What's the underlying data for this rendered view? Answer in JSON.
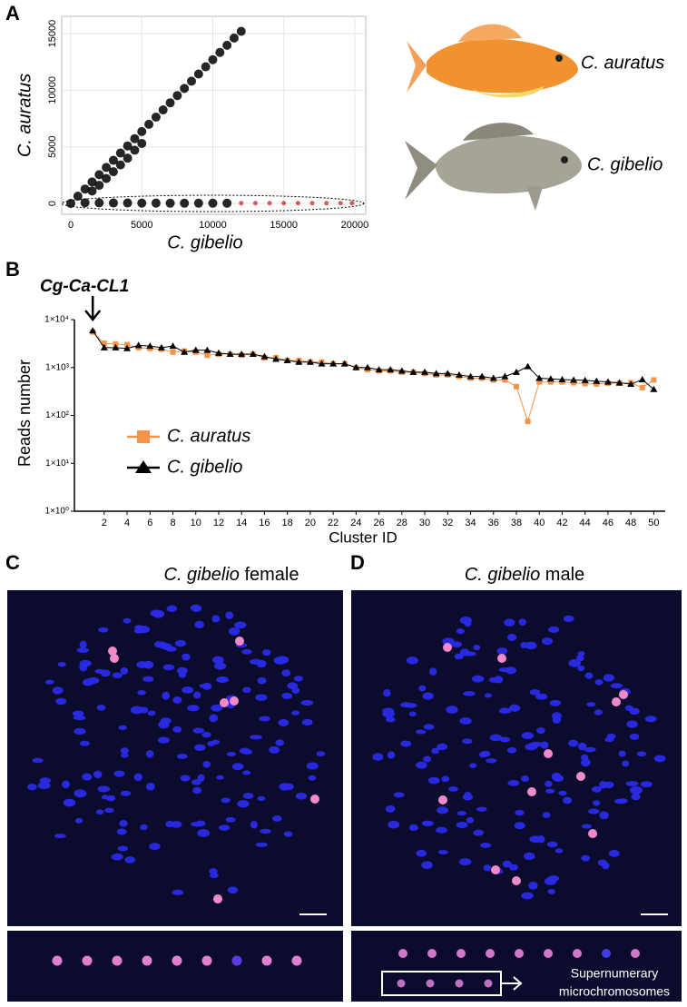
{
  "panel_labels": [
    "A",
    "B",
    "C",
    "D"
  ],
  "fish_labels": [
    "C. auratus",
    "C. gibelio"
  ],
  "chart_data": [
    {
      "type": "scatter",
      "xlabel": "C. gibelio",
      "ylabel": "C. auratus",
      "xlim": [
        -640,
        20770
      ],
      "ylim": [
        -960,
        16525
      ],
      "xticks": [
        0,
        5000,
        10000,
        15000,
        20000
      ],
      "yticks": [
        0,
        5000,
        10000,
        15000
      ],
      "grid": true,
      "series": [
        {
          "color": "#000000",
          "x": [
            0,
            500,
            1000,
            1500,
            2000,
            2500,
            3000,
            3500,
            4000,
            4500,
            5000,
            5500,
            6000,
            6500,
            7000,
            7500,
            8000,
            8500,
            9000,
            9500,
            10000,
            10500,
            11000,
            11500,
            12000,
            1500,
            2000,
            2500,
            3000,
            3500,
            4000,
            4500,
            5000,
            1000,
            2000,
            3000,
            4000,
            5000,
            6000,
            7000,
            8000,
            9000,
            10000,
            11000
          ],
          "values": [
            0,
            640,
            1270,
            1900,
            2540,
            3180,
            3810,
            4450,
            5080,
            5720,
            6350,
            6990,
            7620,
            8260,
            8890,
            9530,
            10160,
            10800,
            11430,
            12070,
            12700,
            13340,
            13970,
            14610,
            15200,
            1100,
            1600,
            2200,
            2800,
            3400,
            4000,
            4700,
            5300,
            60,
            50,
            40,
            40,
            30,
            30,
            20,
            20,
            20,
            20,
            20
          ]
        },
        {
          "color": "#d04040",
          "x": [
            12000,
            13000,
            14000,
            15000,
            16000,
            17000,
            18000,
            19000,
            19800
          ],
          "values": [
            20,
            20,
            20,
            20,
            20,
            20,
            20,
            20,
            20
          ]
        }
      ]
    },
    {
      "type": "line",
      "xlabel": "Cluster ID",
      "ylabel": "Reads number",
      "annotation": "Cg-Ca-CL1",
      "log_y": true,
      "legend": "left",
      "xlim": [
        -0.6,
        51
      ],
      "ylim": [
        1,
        10000
      ],
      "xticks": [
        2,
        4,
        6,
        8,
        10,
        12,
        14,
        16,
        18,
        20,
        22,
        24,
        26,
        28,
        30,
        32,
        34,
        36,
        38,
        40,
        42,
        44,
        46,
        48,
        50
      ],
      "yticks": [
        {
          "value": 1,
          "label": "1×10⁰"
        },
        {
          "value": 10,
          "label": "1×10¹"
        },
        {
          "value": 100,
          "label": "1×10²"
        },
        {
          "value": 1000,
          "label": "1×10³"
        },
        {
          "value": 10000,
          "label": "1×10⁴"
        }
      ],
      "x": [
        1,
        2,
        3,
        4,
        5,
        6,
        7,
        8,
        9,
        10,
        11,
        12,
        13,
        14,
        15,
        16,
        17,
        18,
        19,
        20,
        21,
        22,
        23,
        24,
        25,
        26,
        27,
        28,
        29,
        30,
        31,
        32,
        33,
        34,
        35,
        36,
        37,
        38,
        39,
        40,
        41,
        42,
        43,
        44,
        45,
        46,
        47,
        48,
        49,
        50
      ],
      "series": [
        {
          "name": "C. auratus",
          "color": "#f4934a",
          "marker": "square",
          "values": [
            5500,
            3200,
            3100,
            3000,
            2600,
            2500,
            2400,
            2100,
            2200,
            2100,
            1800,
            1900,
            1900,
            1800,
            1900,
            1600,
            1600,
            1400,
            1400,
            1300,
            1300,
            1200,
            1200,
            1000,
            900,
            850,
            850,
            800,
            800,
            750,
            700,
            700,
            650,
            600,
            600,
            550,
            550,
            400,
            75,
            500,
            500,
            500,
            480,
            460,
            450,
            470,
            470,
            480,
            380,
            550
          ]
        },
        {
          "name": "C. gibelio",
          "color": "#000000",
          "marker": "triangle",
          "values": [
            5900,
            2600,
            2600,
            2500,
            2900,
            2800,
            2600,
            2800,
            2100,
            2300,
            2300,
            2000,
            1900,
            1900,
            1900,
            1700,
            1500,
            1400,
            1300,
            1300,
            1200,
            1200,
            1200,
            1000,
            1000,
            900,
            900,
            850,
            800,
            800,
            750,
            750,
            700,
            650,
            650,
            600,
            650,
            800,
            1050,
            600,
            580,
            560,
            550,
            540,
            520,
            500,
            480,
            450,
            560,
            350
          ]
        }
      ]
    }
  ],
  "micrographs": {
    "female": {
      "species": "C. gibelio",
      "sex": "female"
    },
    "male": {
      "species": "C. gibelio",
      "sex": "male"
    },
    "annotation": [
      "Supernumerary",
      "microchromosomes"
    ]
  }
}
